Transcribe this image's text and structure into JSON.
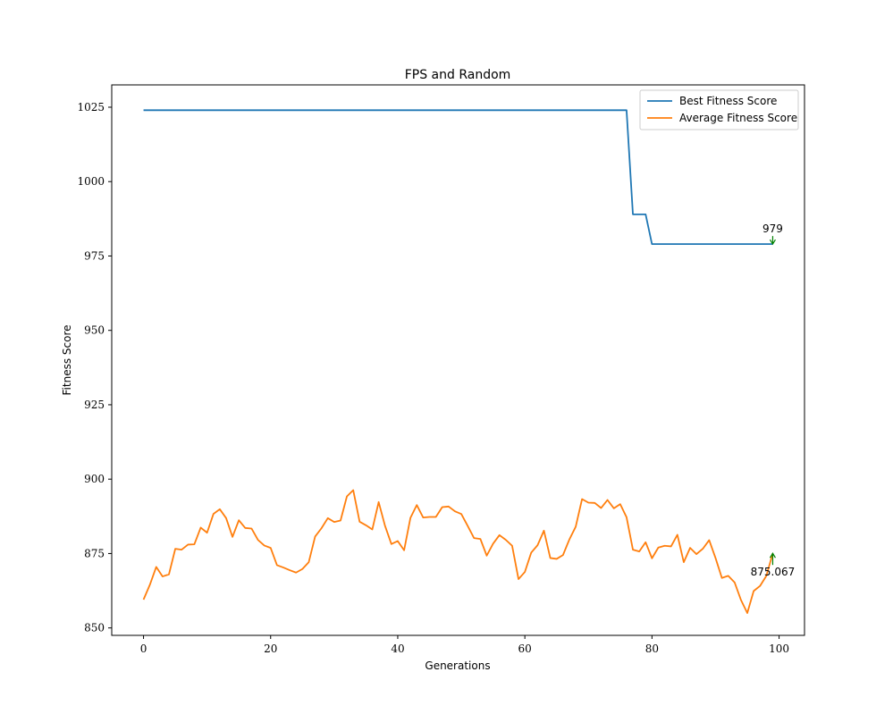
{
  "chart_data": {
    "type": "line",
    "title": "FPS and Random",
    "xlabel": "Generations",
    "ylabel": "Fitness Score",
    "xlim": [
      -5,
      104
    ],
    "ylim": [
      847.5,
      1032.5
    ],
    "xticks": [
      0,
      20,
      40,
      60,
      80,
      100
    ],
    "yticks": [
      850,
      875,
      900,
      925,
      950,
      975,
      1000,
      1025
    ],
    "grid": false,
    "legend_position": "top-right",
    "colors": {
      "best": "#1f77b4",
      "average": "#ff7f0e",
      "annotation_arrow": "#008000"
    },
    "series": [
      {
        "name": "Best Fitness Score",
        "x": [
          0,
          76,
          77,
          79,
          80,
          99
        ],
        "values": [
          1024,
          1024,
          989,
          989,
          979,
          979
        ]
      },
      {
        "name": "Average Fitness Score",
        "x": [
          0,
          1,
          2,
          3,
          4,
          5,
          6,
          7,
          8,
          9,
          10,
          11,
          12,
          13,
          14,
          15,
          16,
          17,
          18,
          19,
          20,
          21,
          22,
          23,
          24,
          25,
          26,
          27,
          28,
          29,
          30,
          31,
          32,
          33,
          34,
          35,
          36,
          37,
          38,
          39,
          40,
          41,
          42,
          43,
          44,
          45,
          46,
          47,
          48,
          49,
          50,
          51,
          52,
          53,
          54,
          55,
          56,
          57,
          58,
          59,
          60,
          61,
          62,
          63,
          64,
          65,
          66,
          67,
          68,
          69,
          70,
          71,
          72,
          73,
          74,
          75,
          76,
          77,
          78,
          79,
          80,
          81,
          82,
          83,
          84,
          85,
          86,
          87,
          88,
          89,
          90,
          91,
          92,
          93,
          94,
          95,
          96,
          97,
          98,
          99
        ],
        "values": [
          859.5,
          864.5,
          870.5,
          867.3,
          868,
          876.6,
          876.3,
          878,
          878.1,
          883.7,
          882,
          888.3,
          889.9,
          886.9,
          880.6,
          886.2,
          883.6,
          883.4,
          879.6,
          877.7,
          876.9,
          871.1,
          870.3,
          869.4,
          868.6,
          869.8,
          872.1,
          880.7,
          883.5,
          886.9,
          885.6,
          886.1,
          894.2,
          896.3,
          885.7,
          884.5,
          883.1,
          892.3,
          884.3,
          878.2,
          879.2,
          876.1,
          887,
          891.3,
          887.1,
          887.3,
          887.3,
          890.6,
          890.8,
          889.2,
          888.3,
          884.3,
          880.2,
          879.9,
          874.3,
          878.3,
          881.2,
          879.6,
          877.6,
          866.4,
          868.8,
          875.3,
          877.8,
          882.7,
          873.5,
          873.2,
          874.5,
          879.7,
          884,
          893.3,
          892.1,
          892,
          890.3,
          893,
          890.2,
          891.6,
          887.2,
          876.3,
          875.7,
          878.8,
          873.4,
          877,
          877.6,
          877.4,
          881.3,
          872.1,
          876.9,
          874.8,
          876.6,
          879.5,
          873.5,
          866.8,
          867.5,
          865.3,
          859.4,
          855,
          862.4,
          864.1,
          867.5,
          875.067
        ]
      }
    ],
    "annotations": [
      {
        "text": "979",
        "x": 99,
        "y": 979
      },
      {
        "text": "875.067",
        "x": 99,
        "y": 875.067
      }
    ]
  }
}
